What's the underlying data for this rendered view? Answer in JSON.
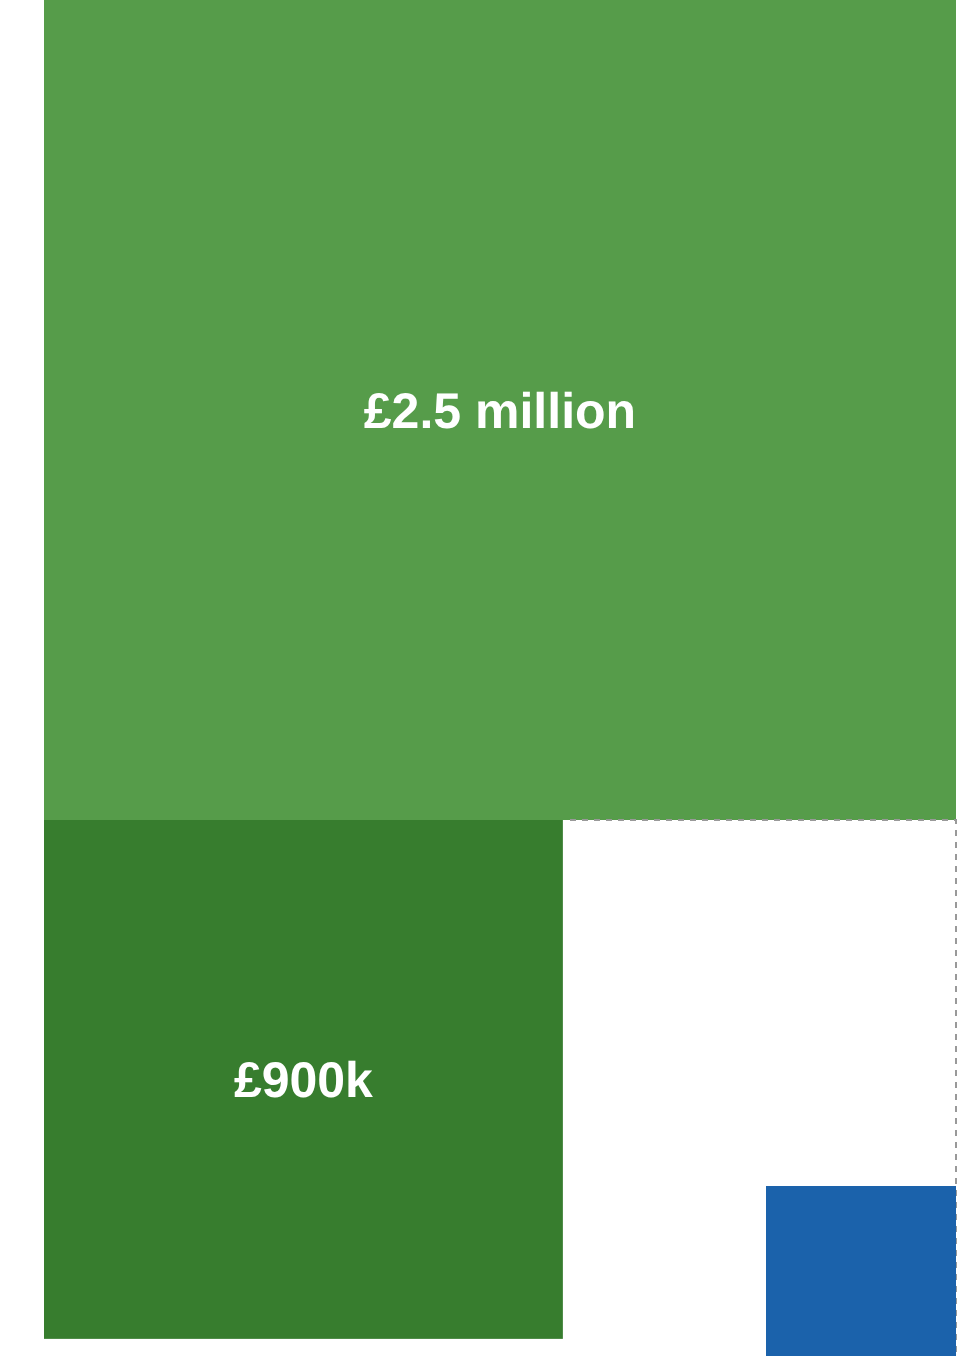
{
  "chart_data": {
    "type": "other",
    "categories": [
      null,
      null
    ],
    "values": [
      2500000,
      900000
    ],
    "value_labels": [
      "£2.5 million",
      "£900k"
    ],
    "colors": [
      "#569c4a",
      "#377d2e"
    ]
  }
}
